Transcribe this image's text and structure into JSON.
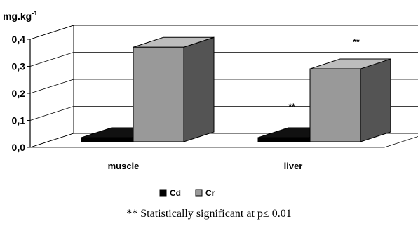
{
  "chart_data": {
    "type": "bar",
    "style": "3d-clustered",
    "ylabel": "mg.kg",
    "ylabel_superscript": "-1",
    "categories": [
      "muscle",
      "liver"
    ],
    "series": [
      {
        "name": "Cd",
        "values": [
          0.005,
          0.005
        ],
        "color": "#000000"
      },
      {
        "name": "Cr",
        "values": [
          0.35,
          0.27
        ],
        "color": "#999999"
      }
    ],
    "ylim": [
      0,
      0.4
    ],
    "yticks": [
      "0,0",
      "0,1",
      "0,2",
      "0,3",
      "0,4"
    ],
    "grid": true,
    "legend_position": "bottom",
    "annotations": [
      "**",
      "**"
    ],
    "footnote": "** Statistically significant at p≤ 0.01"
  }
}
